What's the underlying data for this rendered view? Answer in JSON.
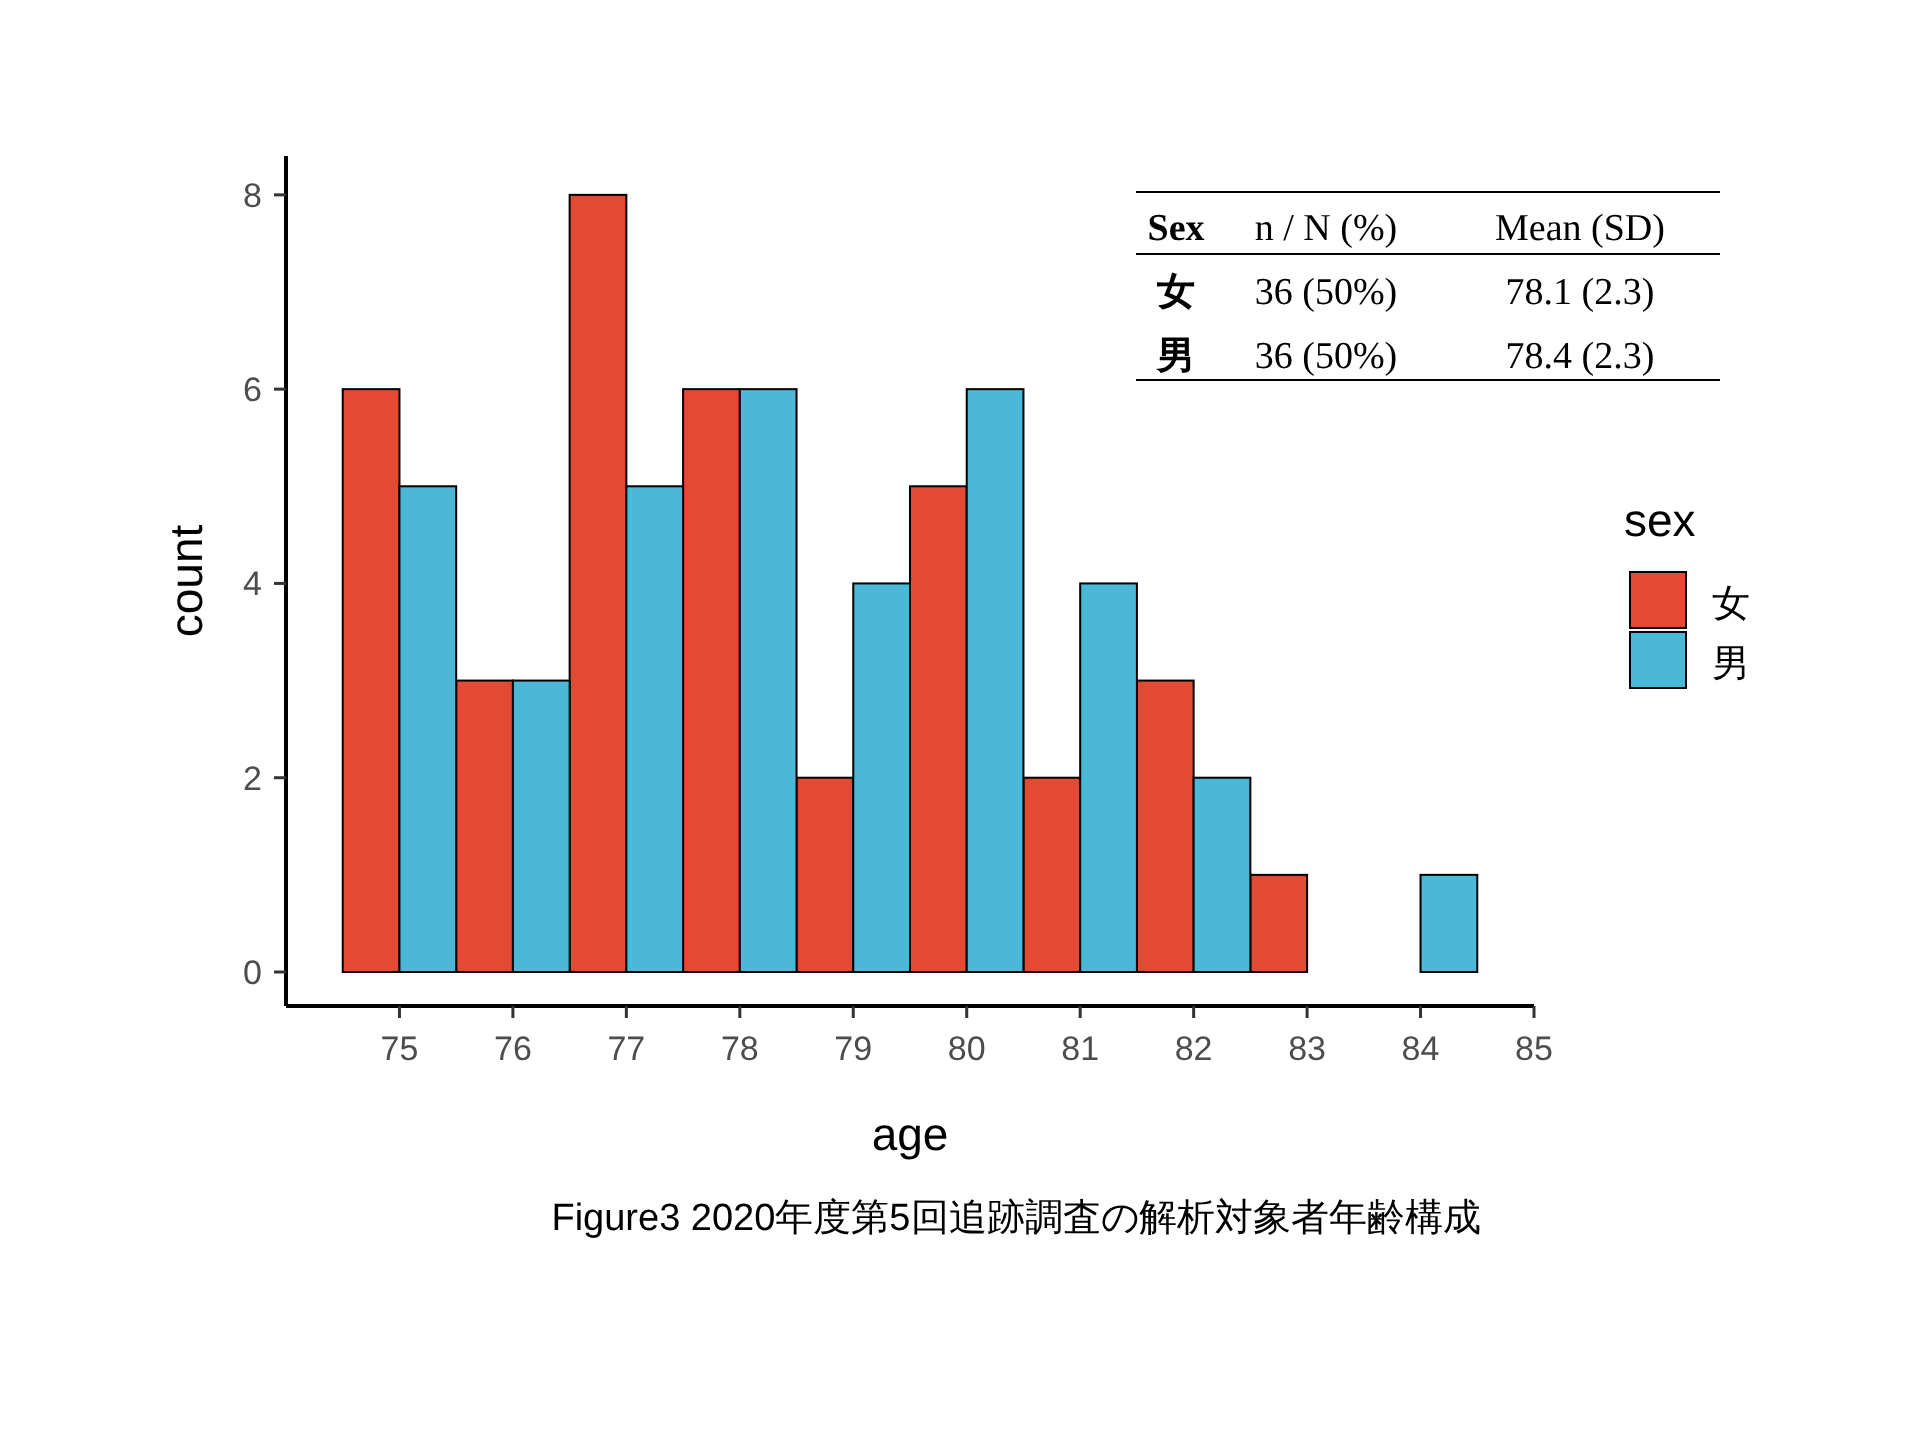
{
  "chart_data": {
    "type": "bar",
    "xlabel": "age",
    "ylabel": "count",
    "legend_title": "sex",
    "x": [
      75,
      76,
      77,
      78,
      79,
      80,
      81,
      82,
      83,
      84
    ],
    "series": [
      {
        "name": "女",
        "color": "#e34a33",
        "values": [
          6,
          3,
          8,
          6,
          2,
          5,
          2,
          3,
          1,
          0
        ]
      },
      {
        "name": "男",
        "color": "#4ab8d6",
        "values": [
          5,
          3,
          5,
          6,
          4,
          6,
          4,
          2,
          0,
          1
        ]
      }
    ],
    "xlim": [
      74,
      85
    ],
    "xticks": [
      75,
      76,
      77,
      78,
      79,
      80,
      81,
      82,
      83,
      84,
      85
    ],
    "ylim": [
      -0.35,
      8.4
    ],
    "yticks": [
      0,
      2,
      4,
      6,
      8
    ],
    "grid": false,
    "legend": "right",
    "annotations": [
      "Figure3 2020年度第5回追跡調査の解析対象者年齢構成",
      "Sex",
      "n / N (%)",
      "Mean   (SD)",
      "女",
      "36  (50%)",
      "78.1 (2.3)",
      "男",
      "36  (50%)",
      "78.4 (2.3)"
    ]
  }
}
